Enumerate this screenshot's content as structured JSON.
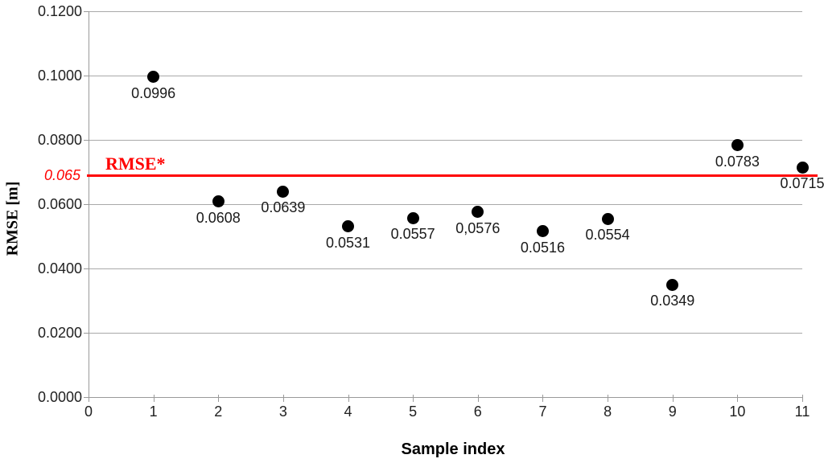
{
  "chart_data": {
    "type": "scatter",
    "title": "",
    "xlabel": "Sample index",
    "ylabel": "RMSE [m]",
    "x": [
      1,
      2,
      3,
      4,
      5,
      6,
      7,
      8,
      9,
      10,
      11
    ],
    "values": [
      0.0996,
      0.0608,
      0.0639,
      0.0531,
      0.0557,
      0.0576,
      0.0516,
      0.0554,
      0.0349,
      0.0783,
      0.0715
    ],
    "point_labels": [
      "0.0996",
      "0.0608",
      "0.0639",
      "0.0531",
      "0.0557",
      "0,0576",
      "0.0516",
      "0.0554",
      "0.0349",
      "0.0783",
      "0.0715"
    ],
    "xlim": [
      0,
      11
    ],
    "ylim": [
      0,
      0.12
    ],
    "x_ticks": [
      0,
      1,
      2,
      3,
      4,
      5,
      6,
      7,
      8,
      9,
      10,
      11
    ],
    "y_ticks": [
      {
        "value": 0.12,
        "label": "0.1200"
      },
      {
        "value": 0.1,
        "label": "0.1000"
      },
      {
        "value": 0.08,
        "label": "0.0800"
      },
      {
        "value": 0.06,
        "label": "0.0600"
      },
      {
        "value": 0.04,
        "label": "0.0400"
      },
      {
        "value": 0.02,
        "label": "0.0200"
      },
      {
        "value": 0.0,
        "label": "0.0000"
      }
    ],
    "grid": true,
    "legend": false,
    "threshold": {
      "label": "RMSE*",
      "axis_label": "0.065",
      "value": 0.065,
      "display_value": 0.069,
      "color": "#ff0000"
    },
    "colors": {
      "point": "#000000",
      "grid": "#a9a9a9",
      "axis": "#9a9a9a",
      "tick_label": "#1f1f1f",
      "data_label": "#1a1a1a"
    }
  }
}
